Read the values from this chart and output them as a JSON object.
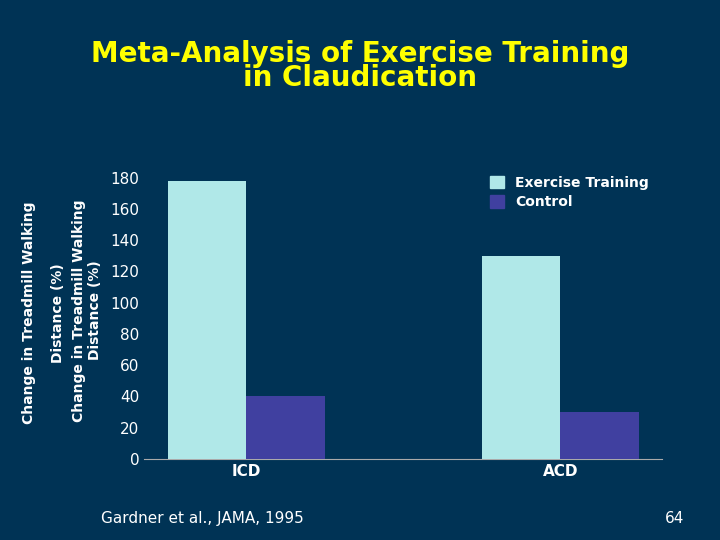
{
  "title_line1": "Meta-Analysis of Exercise Training",
  "title_line2": "in Claudication",
  "title_color": "#ffff00",
  "title_fontsize": 20,
  "background_color": "#003355",
  "plot_bg_color": "#003355",
  "categories": [
    "ICD",
    "ACD"
  ],
  "exercise_values": [
    178,
    130
  ],
  "control_values": [
    40,
    30
  ],
  "exercise_color": "#b0e8e8",
  "control_color": "#4040a0",
  "legend_exercise_label": "Exercise Training",
  "legend_control_label": "Control",
  "legend_text_color": "#ffffff",
  "ylabel_line1": "Change in Treadmill Walking",
  "ylabel_line2": "Distance (%)",
  "ylabel_color": "#ffffff",
  "ylabel_fontsize": 10,
  "tick_color": "#ffffff",
  "tick_fontsize": 11,
  "ylim": [
    0,
    190
  ],
  "yticks": [
    0,
    20,
    40,
    60,
    80,
    100,
    120,
    140,
    160,
    180
  ],
  "bar_width": 0.25,
  "footer_text": "Gardner et al., JAMA, 1995",
  "footer_fontsize": 11,
  "page_number": "64",
  "axis_line_color": "#aaaaaa"
}
